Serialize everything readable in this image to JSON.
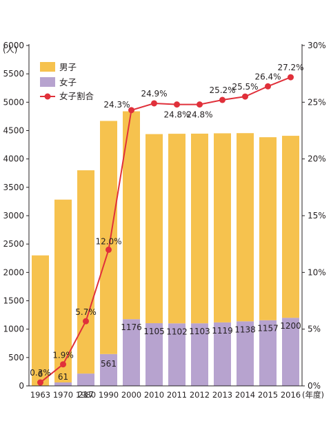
{
  "chart_data": {
    "type": "bar",
    "stacked": true,
    "categories": [
      "1963",
      "1970",
      "1980",
      "1990",
      "2000",
      "2010",
      "2011",
      "2012",
      "2013",
      "2014",
      "2015",
      "2016"
    ],
    "x_unit": "(年度)",
    "y_left": {
      "unit": "(人)",
      "lim": [
        0,
        6000
      ],
      "ticks": [
        0,
        500,
        1000,
        1500,
        2000,
        2500,
        3000,
        3500,
        4000,
        4500,
        5000,
        5500,
        6000
      ]
    },
    "y_right": {
      "lim": [
        0,
        30
      ],
      "ticks": [
        "0%",
        "5%",
        "10%",
        "15%",
        "20%",
        "25%",
        "30%"
      ]
    },
    "series": [
      {
        "name": "男子",
        "kind": "bar",
        "color": "#f6c24e",
        "values": [
          2294,
          3222,
          3583,
          4109,
          3664,
          3333,
          3342,
          3343,
          3333,
          3317,
          3226,
          3208
        ]
      },
      {
        "name": "女子",
        "kind": "bar",
        "color": "#b7a3cf",
        "values": [
          6,
          61,
          217,
          561,
          1176,
          1105,
          1102,
          1103,
          1119,
          1138,
          1157,
          1200
        ],
        "labels": [
          "6",
          "61",
          "217",
          "561",
          "1176",
          "1105",
          "1102",
          "1103",
          "1119",
          "1138",
          "1157",
          "1200"
        ]
      },
      {
        "name": "女子割合",
        "kind": "line",
        "axis": "right",
        "color": "#e0303a",
        "values": [
          0.3,
          1.9,
          5.7,
          12.0,
          24.3,
          24.9,
          24.8,
          24.8,
          25.2,
          25.5,
          26.4,
          27.2
        ],
        "labels": [
          "0.3%",
          "1.9%",
          "5.7%",
          "12.0%",
          "24.3%",
          "24.9%",
          "24.8%",
          "24.8%",
          "25.2%",
          "25.5%",
          "26.4%",
          "27.2%"
        ]
      }
    ],
    "legend_position": "top-left",
    "grid": false
  }
}
